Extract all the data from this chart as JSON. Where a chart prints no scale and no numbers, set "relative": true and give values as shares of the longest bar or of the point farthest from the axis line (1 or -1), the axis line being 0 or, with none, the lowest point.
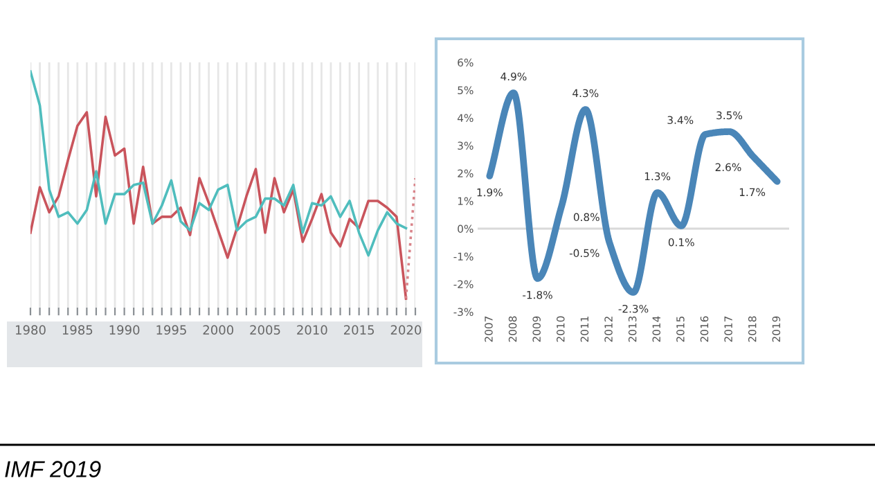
{
  "chart_data": [
    {
      "type": "line",
      "relative": true,
      "grid": "x",
      "x": [
        1980,
        1981,
        1982,
        1983,
        1984,
        1985,
        1986,
        1987,
        1988,
        1989,
        1990,
        1991,
        1992,
        1993,
        1994,
        1995,
        1996,
        1997,
        1998,
        1999,
        2000,
        2001,
        2002,
        2003,
        2004,
        2005,
        2006,
        2007,
        2008,
        2009,
        2010,
        2011,
        2012,
        2013,
        2014,
        2015,
        2016,
        2017,
        2018,
        2019,
        2020
      ],
      "xlim": [
        1980,
        2021
      ],
      "xticks": [
        1980,
        {
          "value": 1981,
          "label": null
        },
        {
          "value": 1982,
          "label": null
        },
        {
          "value": 1983,
          "label": null
        },
        {
          "value": 1984,
          "label": null
        },
        1985,
        {
          "value": 1986,
          "label": null
        },
        {
          "value": 1987,
          "label": null
        },
        {
          "value": 1988,
          "label": null
        },
        {
          "value": 1989,
          "label": null
        },
        1990,
        {
          "value": 1991,
          "label": null
        },
        {
          "value": 1992,
          "label": null
        },
        {
          "value": 1993,
          "label": null
        },
        {
          "value": 1994,
          "label": null
        },
        1995,
        {
          "value": 1996,
          "label": null
        },
        {
          "value": 1997,
          "label": null
        },
        {
          "value": 1998,
          "label": null
        },
        {
          "value": 1999,
          "label": null
        },
        2000,
        {
          "value": 2001,
          "label": null
        },
        {
          "value": 2002,
          "label": null
        },
        {
          "value": 2003,
          "label": null
        },
        {
          "value": 2004,
          "label": null
        },
        2005,
        {
          "value": 2006,
          "label": null
        },
        {
          "value": 2007,
          "label": null
        },
        {
          "value": 2008,
          "label": null
        },
        {
          "value": 2009,
          "label": null
        },
        2010,
        {
          "value": 2011,
          "label": null
        },
        {
          "value": 2012,
          "label": null
        },
        {
          "value": 2013,
          "label": null
        },
        {
          "value": 2014,
          "label": null
        },
        2015,
        {
          "value": 2016,
          "label": null
        },
        {
          "value": 2017,
          "label": null
        },
        {
          "value": 2018,
          "label": null
        },
        {
          "value": 2019,
          "label": null
        },
        2020,
        {
          "value": 2021,
          "label": null
        }
      ],
      "series": [
        {
          "color": "#c9545c",
          "values": [
            0.29,
            0.49,
            0.38,
            0.45,
            0.61,
            0.76,
            0.82,
            0.45,
            0.8,
            0.63,
            0.66,
            0.33,
            0.58,
            0.33,
            0.36,
            0.36,
            0.4,
            0.28,
            0.53,
            0.42,
            0.3,
            0.18,
            0.31,
            0.45,
            0.57,
            0.29,
            0.53,
            0.38,
            0.48,
            0.25,
            0.35,
            0.46,
            0.29,
            0.23,
            0.35,
            0.31,
            0.43,
            0.43,
            0.4,
            0.36,
            0.0
          ]
        },
        {
          "color": "#4fbdbd",
          "values": [
            1.0,
            0.85,
            0.48,
            0.36,
            0.38,
            0.33,
            0.39,
            0.56,
            0.33,
            0.46,
            0.46,
            0.5,
            0.51,
            0.33,
            0.41,
            0.52,
            0.34,
            0.3,
            0.42,
            0.39,
            0.48,
            0.5,
            0.3,
            0.34,
            0.36,
            0.44,
            0.44,
            0.41,
            0.5,
            0.29,
            0.42,
            0.41,
            0.45,
            0.36,
            0.43,
            0.29,
            0.19,
            0.3,
            0.38,
            0.33,
            0.31
          ]
        },
        {
          "color": "#d9848a",
          "line_style": "dotted",
          "x": [
            2020,
            2021
          ],
          "values": [
            0.0,
            0.53
          ]
        }
      ],
      "annotations": [
        "IMF 2019"
      ]
    },
    {
      "type": "line",
      "categories": [
        "2007",
        "2008",
        "2009",
        "2010",
        "2011",
        "2012",
        "2013",
        "2014",
        "2015",
        "2016",
        "2017",
        "2018",
        "2019"
      ],
      "ylim": [
        -3,
        6
      ],
      "yticks": [
        {
          "value": -3,
          "label": "-3%"
        },
        {
          "value": -2,
          "label": "-2%"
        },
        {
          "value": -1,
          "label": "-1%"
        },
        {
          "value": 0,
          "label": "0%"
        },
        {
          "value": 1,
          "label": "1%"
        },
        {
          "value": 2,
          "label": "2%"
        },
        {
          "value": 3,
          "label": "3%"
        },
        {
          "value": 4,
          "label": "4%"
        },
        {
          "value": 5,
          "label": "5%"
        },
        {
          "value": 6,
          "label": "6%"
        }
      ],
      "grid": false,
      "ref_lines": [
        {
          "axis": "y",
          "value": 0,
          "color": "#d9d9d9"
        }
      ],
      "series": [
        {
          "color": "#4a86b8",
          "values": [
            1.9,
            4.9,
            -1.8,
            0.8,
            4.3,
            -0.5,
            -2.3,
            1.3,
            0.1,
            3.4,
            3.5,
            2.6,
            1.7
          ]
        }
      ],
      "value_labels": [
        "1.9%",
        "4.9%",
        "-1.8%",
        "0.8%",
        "4.3%",
        "-0.5%",
        "-2.3%",
        "1.3%",
        "0.1%",
        "3.4%",
        "3.5%",
        "2.6%",
        "1.7%"
      ]
    }
  ]
}
